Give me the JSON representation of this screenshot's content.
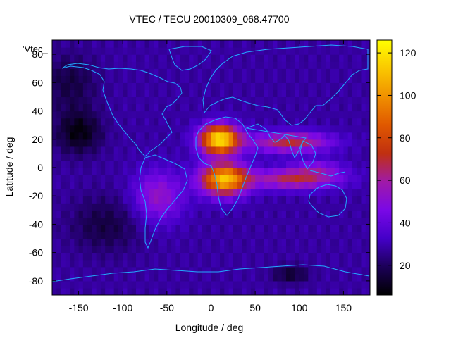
{
  "chart_data": {
    "type": "heatmap",
    "title": "VTEC / TECU 20010309_068.47700",
    "xlabel": "Longitude / deg",
    "ylabel": "Latitude / deg",
    "key_label": "'Vtec_",
    "xlim": [
      -180,
      180
    ],
    "ylim": [
      -90,
      90
    ],
    "xticks": [
      -150,
      -100,
      -50,
      0,
      50,
      100,
      150
    ],
    "yticks": [
      -80,
      -60,
      -40,
      -20,
      0,
      20,
      40,
      60,
      80
    ],
    "colorbar": {
      "range": [
        6,
        126
      ],
      "ticks": [
        20,
        40,
        60,
        80,
        100,
        120
      ],
      "palette": [
        "#000000",
        "#1c0058",
        "#4400c8",
        "#7a08e6",
        "#a01aa8",
        "#c03010",
        "#e05800",
        "#f09000",
        "#fac800",
        "#ffff00"
      ]
    },
    "field": {
      "description": "Global VTEC map; maximum over Africa (~20N and ~10S) with extension toward SE Asia",
      "background_tecu": 28,
      "peaks": [
        {
          "lon": 10,
          "lat": 20,
          "amp": 92,
          "slon": 22,
          "slat": 10
        },
        {
          "lon": 15,
          "lat": -8,
          "amp": 82,
          "slon": 26,
          "slat": 11
        },
        {
          "lon": 90,
          "lat": 18,
          "amp": 42,
          "slon": 45,
          "slat": 7
        },
        {
          "lon": 95,
          "lat": -8,
          "amp": 40,
          "slon": 50,
          "slat": 7
        },
        {
          "lon": -60,
          "lat": -20,
          "amp": 26,
          "slon": 28,
          "slat": 18
        },
        {
          "lon": 120,
          "lat": 0,
          "amp": 18,
          "slon": 30,
          "slat": 6
        }
      ],
      "troughs": [
        {
          "lon": -150,
          "lat": 25,
          "amp": 20,
          "slon": 25,
          "slat": 15
        },
        {
          "lon": -120,
          "lat": -40,
          "amp": 12,
          "slon": 40,
          "slat": 20
        },
        {
          "lon": 90,
          "lat": -75,
          "amp": 15,
          "slon": 20,
          "slat": 6
        },
        {
          "lon": -160,
          "lat": 60,
          "amp": 12,
          "slon": 30,
          "slat": 20
        }
      ]
    },
    "overlay": "world coastlines"
  }
}
